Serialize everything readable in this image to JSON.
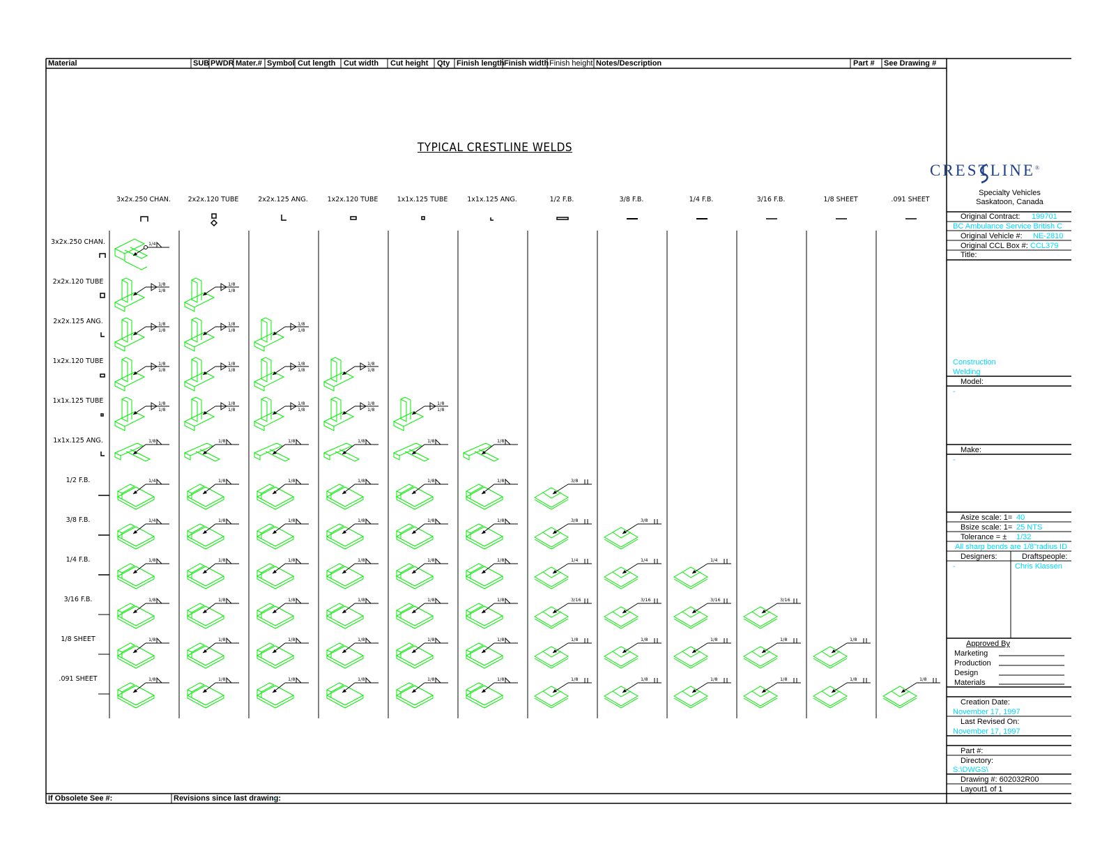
{
  "header": {
    "material": "Material",
    "sub": "SUB",
    "pwdr": "PWDR",
    "mater_no": "Mater.#",
    "symbol": "Symbol",
    "cut_length": "Cut length",
    "cut_width": "Cut width",
    "cut_height": "Cut height",
    "qty": "Qty",
    "finish_length": "Finish length",
    "finish_width": "Finish width",
    "finish_height": "Finish height",
    "notes": "Notes/Description",
    "part_no": "Part #",
    "see_drawing": "See Drawing #"
  },
  "drawing_title": "TYPICAL CRESTLINE WELDS",
  "columns": [
    "3x2x.250 CHAN.",
    "2x2x.120 TUBE",
    "2x2x.125 ANG.",
    "1x2x.120 TUBE",
    "1x1x.125 TUBE",
    "1x1x.125 ANG.",
    "1/2 F.B.",
    "3/8 F.B.",
    "1/4 F.B.",
    "3/16 F.B.",
    "1/8 SHEET",
    ".091 SHEET"
  ],
  "rows": [
    "3x2x.250 CHAN.",
    "2x2x.120 TUBE",
    "2x2x.125 ANG.",
    "1x2x.120 TUBE",
    "1x1x.125 TUBE",
    "1x1x.125 ANG.",
    "1/2 F.B.",
    "3/8 F.B.",
    "1/4 F.B.",
    "3/16 F.B.",
    "1/8 SHEET",
    ".091 SHEET"
  ],
  "weld_sizes": [
    [
      "1/4"
    ],
    [
      "1/8\n1/8",
      "1/8\n1/8"
    ],
    [
      "1/8\n1/8",
      "1/8\n1/8",
      "1/8\n1/8"
    ],
    [
      "1/8\n1/8",
      "1/8\n1/8",
      "1/8\n1/8",
      "1/8\n1/8"
    ],
    [
      "1/8\n1/8",
      "1/8\n1/8",
      "1/8\n1/8",
      "1/8\n1/8",
      "1/8\n1/8"
    ],
    [
      "1/8",
      "1/8",
      "1/8",
      "1/8",
      "1/8",
      "1/8"
    ],
    [
      "1/4",
      "1/8",
      "1/8",
      "1/8",
      "1/8",
      "1/8",
      "3/8"
    ],
    [
      "1/4",
      "1/8",
      "1/8",
      "1/8",
      "1/8",
      "1/8",
      "3/8",
      "3/8"
    ],
    [
      "1/8",
      "1/8",
      "1/8",
      "1/8",
      "1/8",
      "1/8",
      "1/4",
      "1/4",
      "1/4"
    ],
    [
      "1/8",
      "1/8",
      "1/8",
      "1/8",
      "1/8",
      "1/8",
      "3/16",
      "3/16",
      "3/16",
      "3/16"
    ],
    [
      "1/8",
      "1/8",
      "1/8",
      "1/8",
      "1/8",
      "1/8",
      "1/8",
      "1/8",
      "1/8",
      "1/8",
      "1/8"
    ],
    [
      "1/8",
      "1/8",
      "1/8",
      "1/8",
      "1/8",
      "1/8",
      "1/8",
      "1/8",
      "1/8",
      "1/8",
      "1/8",
      "1/8"
    ]
  ],
  "title_block": {
    "logo": "CRESTLINE",
    "company_line1": "Specialty Vehicles",
    "company_line2": "Saskatoon, Canada",
    "original_contract_label": "Original Contract:",
    "original_contract_value": "199701",
    "customer": "BC Ambulance Service British C",
    "original_vehicle_label": "Original Vehicle #:",
    "original_vehicle_value": "NE-2810",
    "original_ccl_label": "Original CCL Box #:",
    "original_ccl_value": "CCL379",
    "title_label": "Title:",
    "title_value_1": "Construction",
    "title_value_2": "Welding",
    "model_label": "Model:",
    "model_value": "-",
    "make_label": "Make:",
    "make_value": "-",
    "asize_label": "Asize scale:  1=",
    "asize_value": "40",
    "bsize_label": "Bsize scale:  1=",
    "bsize_value": "25 NTS",
    "tolerance_label": "Tolerance = ±",
    "tolerance_value": "1/32",
    "bends_note": "All sharp bends are 1/8\"radius ID",
    "designers_label": "Designers:",
    "designers_value": "-",
    "draftspeople_label": "Draftspeople:",
    "draftspeople_value": "Chris Klassen",
    "approved_by": "Approved By",
    "approvals": [
      "Marketing",
      "Production",
      "Design",
      "Materials"
    ],
    "creation_date_label": "Creation Date:",
    "creation_date_value": "November 17, 1997",
    "last_revised_label": "Last Revised On:",
    "last_revised_value": "November 17, 1997",
    "part_label": "Part #:",
    "directory_label": "Directory:",
    "directory_value": "S:\\DWGS\\",
    "drawing_label": "Drawing #: 602032R00",
    "layout_label": "Layout1  of 1"
  },
  "footer": {
    "obsolete": "If Obsolete See #:",
    "revisions": "Revisions since last drawing:",
    "revisions_value": "-"
  },
  "colors": {
    "line": "#000000",
    "weld_part": "#00ee00",
    "field_value": "#00d8ff",
    "logo": "#1f3f8f"
  }
}
